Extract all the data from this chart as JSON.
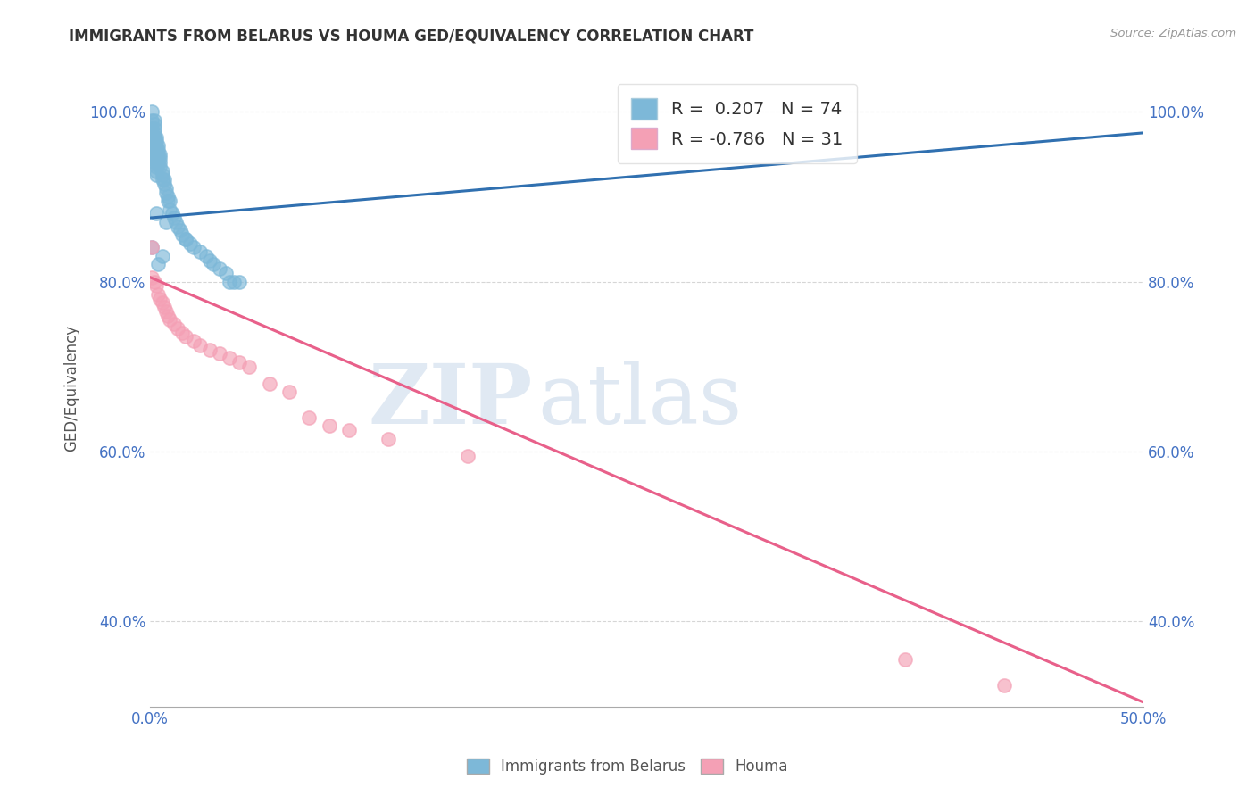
{
  "title": "IMMIGRANTS FROM BELARUS VS HOUMA GED/EQUIVALENCY CORRELATION CHART",
  "source": "Source: ZipAtlas.com",
  "ylabel": "GED/Equivalency",
  "xlim": [
    0.0,
    0.5
  ],
  "ylim": [
    0.3,
    1.05
  ],
  "xtick_vals": [
    0.0,
    0.1,
    0.2,
    0.3,
    0.4,
    0.5
  ],
  "xticklabels": [
    "0.0%",
    "",
    "",
    "",
    "",
    "50.0%"
  ],
  "ytick_vals": [
    0.4,
    0.6,
    0.8,
    1.0
  ],
  "yticklabels": [
    "40.0%",
    "60.0%",
    "80.0%",
    "100.0%"
  ],
  "legend_labels": [
    "Immigrants from Belarus",
    "Houma"
  ],
  "blue_R": 0.207,
  "blue_N": 74,
  "pink_R": -0.786,
  "pink_N": 31,
  "blue_color": "#7db8d8",
  "pink_color": "#f4a0b5",
  "blue_line_color": "#3070b0",
  "pink_line_color": "#e8608a",
  "watermark_zip": "ZIP",
  "watermark_atlas": "atlas",
  "blue_line_x0": 0.0,
  "blue_line_y0": 0.875,
  "blue_line_x1": 0.5,
  "blue_line_y1": 0.975,
  "pink_line_x0": 0.0,
  "pink_line_y0": 0.805,
  "pink_line_x1": 0.5,
  "pink_line_y1": 0.305,
  "blue_scatter_x": [
    0.001,
    0.001,
    0.001,
    0.001,
    0.001,
    0.001,
    0.001,
    0.001,
    0.001,
    0.001,
    0.002,
    0.002,
    0.002,
    0.002,
    0.002,
    0.002,
    0.002,
    0.002,
    0.002,
    0.002,
    0.003,
    0.003,
    0.003,
    0.003,
    0.003,
    0.003,
    0.003,
    0.003,
    0.003,
    0.003,
    0.004,
    0.004,
    0.004,
    0.004,
    0.004,
    0.005,
    0.005,
    0.005,
    0.005,
    0.006,
    0.006,
    0.006,
    0.007,
    0.007,
    0.008,
    0.008,
    0.009,
    0.009,
    0.01,
    0.01,
    0.011,
    0.012,
    0.013,
    0.014,
    0.015,
    0.016,
    0.018,
    0.02,
    0.022,
    0.025,
    0.028,
    0.03,
    0.032,
    0.035,
    0.038,
    0.04,
    0.042,
    0.045,
    0.018,
    0.008,
    0.003,
    0.001,
    0.006,
    0.004
  ],
  "blue_scatter_y": [
    1.0,
    0.99,
    0.98,
    0.975,
    0.97,
    0.965,
    0.96,
    0.955,
    0.95,
    0.945,
    0.99,
    0.985,
    0.98,
    0.975,
    0.97,
    0.965,
    0.96,
    0.955,
    0.95,
    0.94,
    0.97,
    0.965,
    0.96,
    0.955,
    0.95,
    0.945,
    0.94,
    0.935,
    0.93,
    0.925,
    0.96,
    0.955,
    0.95,
    0.945,
    0.94,
    0.95,
    0.945,
    0.94,
    0.935,
    0.93,
    0.925,
    0.92,
    0.92,
    0.915,
    0.91,
    0.905,
    0.9,
    0.895,
    0.895,
    0.885,
    0.88,
    0.875,
    0.87,
    0.865,
    0.86,
    0.855,
    0.85,
    0.845,
    0.84,
    0.835,
    0.83,
    0.825,
    0.82,
    0.815,
    0.81,
    0.8,
    0.8,
    0.8,
    0.85,
    0.87,
    0.88,
    0.84,
    0.83,
    0.82
  ],
  "pink_scatter_x": [
    0.001,
    0.001,
    0.002,
    0.003,
    0.004,
    0.005,
    0.006,
    0.007,
    0.008,
    0.009,
    0.01,
    0.012,
    0.014,
    0.016,
    0.018,
    0.022,
    0.025,
    0.03,
    0.035,
    0.04,
    0.045,
    0.05,
    0.06,
    0.07,
    0.08,
    0.09,
    0.1,
    0.12,
    0.16,
    0.38,
    0.43
  ],
  "pink_scatter_y": [
    0.84,
    0.805,
    0.8,
    0.795,
    0.785,
    0.78,
    0.775,
    0.77,
    0.765,
    0.76,
    0.755,
    0.75,
    0.745,
    0.74,
    0.735,
    0.73,
    0.725,
    0.72,
    0.715,
    0.71,
    0.705,
    0.7,
    0.68,
    0.67,
    0.64,
    0.63,
    0.625,
    0.615,
    0.595,
    0.355,
    0.325
  ]
}
